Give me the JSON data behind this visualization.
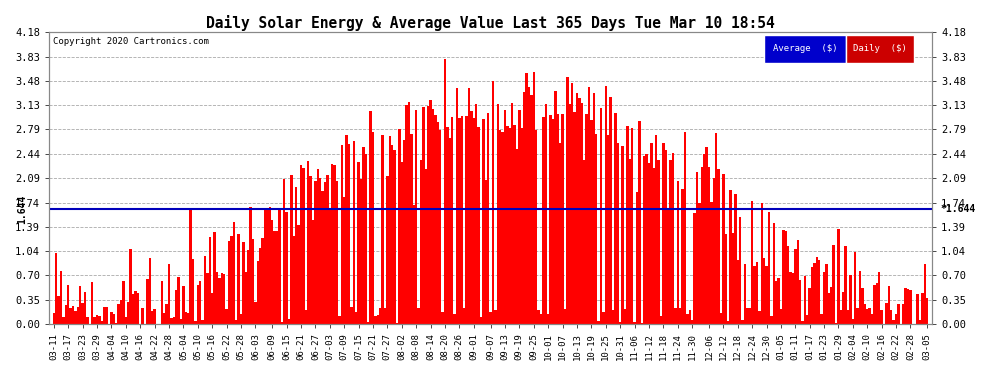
{
  "title": "Daily Solar Energy & Average Value Last 365 Days Tue Mar 10 18:54",
  "copyright": "Copyright 2020 Cartronics.com",
  "average_value": 1.644,
  "average_label": "1.644",
  "ylim": [
    0.0,
    4.18
  ],
  "yticks": [
    0.0,
    0.35,
    0.7,
    1.04,
    1.39,
    1.74,
    2.09,
    2.44,
    2.79,
    3.13,
    3.48,
    3.83,
    4.18
  ],
  "bar_color": "#ff0000",
  "avg_line_color": "#0000bb",
  "background_color": "#ffffff",
  "grid_color": "#aaaaaa",
  "legend_avg_bg": "#0000cc",
  "legend_daily_bg": "#cc0000",
  "legend_text_color": "#ffffff",
  "x_labels": [
    "03-11",
    "03-17",
    "03-23",
    "03-29",
    "04-04",
    "04-10",
    "04-16",
    "04-22",
    "04-28",
    "05-04",
    "05-10",
    "05-16",
    "05-22",
    "05-28",
    "06-03",
    "06-09",
    "06-15",
    "06-21",
    "06-27",
    "07-03",
    "07-09",
    "07-15",
    "07-21",
    "07-27",
    "08-02",
    "08-08",
    "08-14",
    "08-20",
    "08-26",
    "09-01",
    "09-07",
    "09-13",
    "09-19",
    "09-25",
    "10-01",
    "10-07",
    "10-13",
    "10-19",
    "10-25",
    "10-31",
    "11-06",
    "11-12",
    "11-18",
    "11-24",
    "11-30",
    "12-06",
    "12-12",
    "12-18",
    "12-24",
    "12-30",
    "01-05",
    "01-11",
    "01-17",
    "01-23",
    "01-29",
    "02-04",
    "02-10",
    "02-16",
    "02-22",
    "02-28",
    "03-05"
  ],
  "n_days": 365,
  "avg_seed": 99
}
